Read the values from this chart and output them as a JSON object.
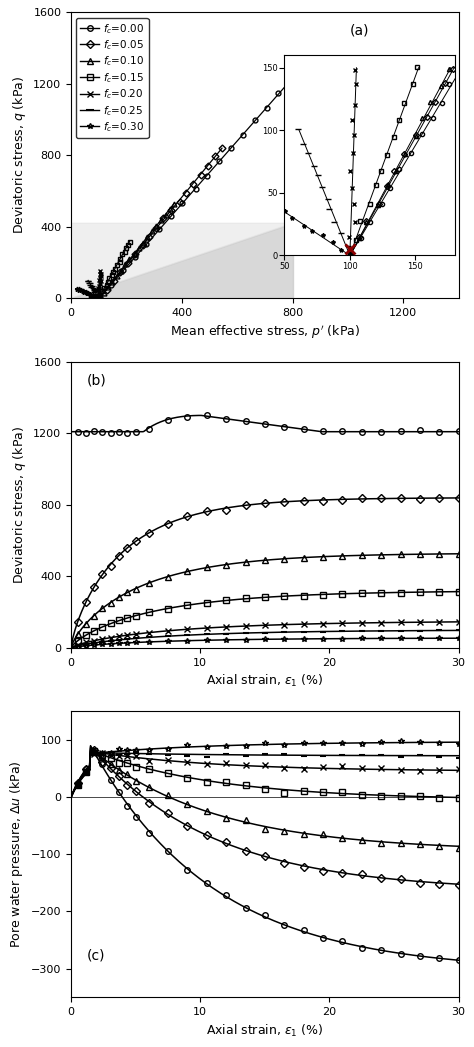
{
  "panel_labels": [
    "(a)",
    "(b)",
    "(c)"
  ],
  "legend_labels": [
    "$f_c$=0.00",
    "$f_c$=0.05",
    "$f_c$=0.10",
    "$f_c$=0.15",
    "$f_c$=0.20",
    "$f_c$=0.25",
    "$f_c$=0.30"
  ],
  "markers": [
    "o",
    "D",
    "^",
    "s",
    "x",
    "-",
    "*"
  ],
  "fc_values": [
    0.0,
    0.05,
    0.1,
    0.15,
    0.2,
    0.25,
    0.3
  ],
  "panel_a": {
    "xlabel": "Mean effective stress, $p'$ (kPa)",
    "ylabel": "Deviatoric stress, $q$ (kPa)",
    "xlim": [
      0,
      1400
    ],
    "ylim": [
      0,
      1600
    ],
    "xticks": [
      0,
      400,
      800,
      1200
    ],
    "yticks": [
      0,
      400,
      800,
      1200,
      1600
    ]
  },
  "panel_b": {
    "xlabel": "Axial strain, $\\varepsilon_1$ (%)",
    "ylabel": "Deviatoric stress, $q$ (kPa)",
    "xlim": [
      0,
      30
    ],
    "ylim": [
      0,
      1600
    ],
    "xticks": [
      0,
      10,
      20,
      30
    ],
    "yticks": [
      0,
      400,
      800,
      1200,
      1600
    ]
  },
  "panel_c": {
    "xlabel": "Axial strain, $\\varepsilon_1$ (%)",
    "ylabel": "Pore water pressure, $\\Delta u$ (kPa)",
    "xlim": [
      0,
      30
    ],
    "ylim": [
      -350,
      150
    ],
    "xticks": [
      0,
      10,
      20,
      30
    ],
    "yticks": [
      -300,
      -200,
      -100,
      0,
      100
    ]
  },
  "q_maxes": [
    1300,
    840,
    530,
    320,
    150,
    100,
    55
  ],
  "eps_50s": [
    4.0,
    5.0,
    6.5,
    8.0,
    9.5,
    9.0,
    8.5
  ],
  "pore_peak": [
    90,
    88,
    85,
    82,
    80,
    78,
    76
  ],
  "pore_final": [
    -305,
    -165,
    -95,
    -5,
    45,
    72,
    97
  ]
}
